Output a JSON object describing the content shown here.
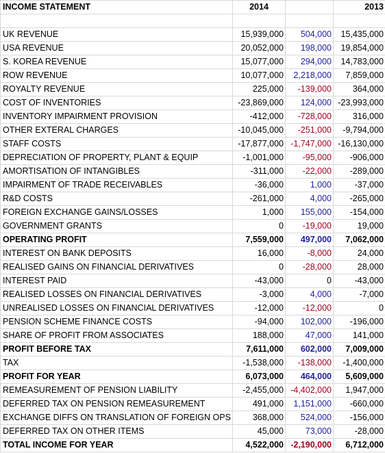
{
  "header": {
    "title": "INCOME STATEMENT",
    "year_current": "2014",
    "year_prior": "2013"
  },
  "colors": {
    "positive_variance": "#1f1f9c",
    "negative_variance": "#a50021",
    "gridline": "#d9d9d9"
  },
  "rows": [
    {
      "label": "UK REVENUE",
      "y2014": "15,939,000",
      "var": "504,000",
      "y2013": "15,435,000"
    },
    {
      "label": "USA REVENUE",
      "y2014": "20,052,000",
      "var": "198,000",
      "y2013": "19,854,000"
    },
    {
      "label": "S. KOREA REVENUE",
      "y2014": "15,077,000",
      "var": "294,000",
      "y2013": "14,783,000"
    },
    {
      "label": "ROW REVENUE",
      "y2014": "10,077,000",
      "var": "2,218,000",
      "y2013": "7,859,000"
    },
    {
      "label": "ROYALTY REVENUE",
      "y2014": "225,000",
      "var": "-139,000",
      "y2013": "364,000"
    },
    {
      "label": "COST OF INVENTORIES",
      "y2014": "-23,869,000",
      "var": "124,000",
      "y2013": "-23,993,000"
    },
    {
      "label": "INVENTORY IMPAIRMENT PROVISION",
      "y2014": "-412,000",
      "var": "-728,000",
      "y2013": "316,000"
    },
    {
      "label": "OTHER EXTERAL CHARGES",
      "y2014": "-10,045,000",
      "var": "-251,000",
      "y2013": "-9,794,000"
    },
    {
      "label": "STAFF COSTS",
      "y2014": "-17,877,000",
      "var": "-1,747,000",
      "y2013": "-16,130,000"
    },
    {
      "label": "DEPRECIATION OF PROPERTY, PLANT & EQUIP",
      "y2014": "-1,001,000",
      "var": "-95,000",
      "y2013": "-906,000"
    },
    {
      "label": "AMORTISATION OF INTANGIBLES",
      "y2014": "-311,000",
      "var": "-22,000",
      "y2013": "-289,000"
    },
    {
      "label": "IMPAIRMENT OF TRADE RECEIVABLES",
      "y2014": "-36,000",
      "var": "1,000",
      "y2013": "-37,000"
    },
    {
      "label": "R&D COSTS",
      "y2014": "-261,000",
      "var": "4,000",
      "y2013": "-265,000"
    },
    {
      "label": "FOREIGN EXCHANGE GAINS/LOSSES",
      "y2014": "1,000",
      "var": "155,000",
      "y2013": "-154,000"
    },
    {
      "label": "GOVERNMENT GRANTS",
      "y2014": "0",
      "var": "-19,000",
      "y2013": "19,000"
    },
    {
      "label": "OPERATING PROFIT",
      "y2014": "7,559,000",
      "var": "497,000",
      "y2013": "7,062,000",
      "bold": true
    },
    {
      "label": "INTEREST ON BANK DEPOSITS",
      "y2014": "16,000",
      "var": "-8,000",
      "y2013": "24,000"
    },
    {
      "label": "REALISED GAINS ON FINANCIAL DERIVATIVES",
      "y2014": "0",
      "var": "-28,000",
      "y2013": "28,000"
    },
    {
      "label": "INTEREST PAID",
      "y2014": "-43,000",
      "var": "0",
      "y2013": "-43,000"
    },
    {
      "label": "REALISED LOSSES ON FINANCIAL DERIVATIVES",
      "y2014": "-3,000",
      "var": "4,000",
      "y2013": "-7,000"
    },
    {
      "label": "UNREALISED LOSSES ON FINANCIAL DERIVATIVES",
      "y2014": "-12,000",
      "var": "-12,000",
      "y2013": "0"
    },
    {
      "label": "PENSION SCHEME FINANCE COSTS",
      "y2014": "-94,000",
      "var": "102,000",
      "y2013": "-196,000"
    },
    {
      "label": "SHARE OF PROFIT FROM ASSOCIATES",
      "y2014": "188,000",
      "var": "47,000",
      "y2013": "141,000"
    },
    {
      "label": "PROFIT BEFORE TAX",
      "y2014": "7,611,000",
      "var": "602,000",
      "y2013": "7,009,000",
      "bold": true
    },
    {
      "label": "TAX",
      "y2014": "-1,538,000",
      "var": "-138,000",
      "y2013": "-1,400,000"
    },
    {
      "label": "PROFIT FOR YEAR",
      "y2014": "6,073,000",
      "var": "464,000",
      "y2013": "5,609,000",
      "bold": true
    },
    {
      "label": "REMEASUREMENT OF PENSION LIABILITY",
      "y2014": "-2,455,000",
      "var": "-4,402,000",
      "y2013": "1,947,000"
    },
    {
      "label": "DEFERRED TAX ON PENSION REMEASUREMENT",
      "y2014": "491,000",
      "var": "1,151,000",
      "y2013": "-660,000"
    },
    {
      "label": "EXCHANGE DIFFS ON TRANSLATION OF FOREIGN OPS",
      "y2014": "368,000",
      "var": "524,000",
      "y2013": "-156,000"
    },
    {
      "label": "DEFERRED TAX ON OTHER ITEMS",
      "y2014": "45,000",
      "var": "73,000",
      "y2013": "-28,000"
    },
    {
      "label": "TOTAL INCOME FOR YEAR",
      "y2014": "4,522,000",
      "var": "-2,190,000",
      "y2013": "6,712,000",
      "bold": true
    }
  ]
}
